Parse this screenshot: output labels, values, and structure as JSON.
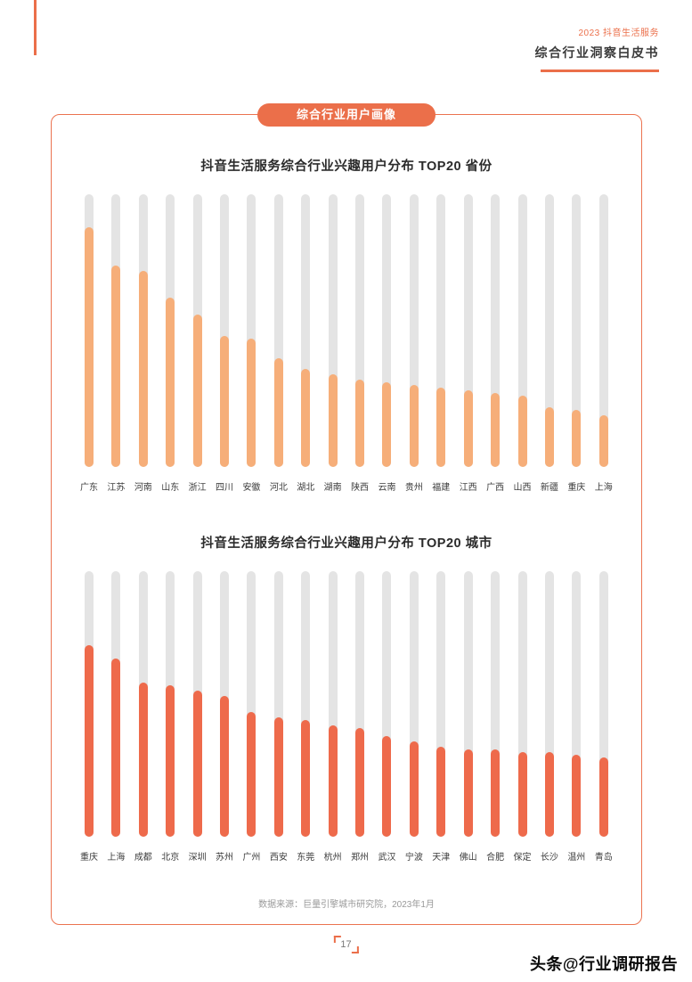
{
  "header": {
    "kicker": "2023 抖音生活服务",
    "title": "综合行业洞察白皮书"
  },
  "badge": "综合行业用户画像",
  "source": "数据来源：巨量引擎城市研究院，2023年1月",
  "page_number": "17",
  "watermark": "头条@行业调研报告",
  "colors": {
    "accent_orange": "#EB6F4A",
    "province_bar": "#F6AE79",
    "city_bar": "#EE6A4B",
    "bar_track": "#E4E4E4"
  },
  "chart_data": [
    {
      "type": "bar",
      "title": "抖音生活服务综合行业兴趣用户分布 TOP20 省份",
      "categories": [
        "广东",
        "江苏",
        "河南",
        "山东",
        "浙江",
        "四川",
        "安徽",
        "河北",
        "湖北",
        "湖南",
        "陕西",
        "云南",
        "贵州",
        "福建",
        "江西",
        "广西",
        "山西",
        "新疆",
        "重庆",
        "上海"
      ],
      "values": [
        88,
        74,
        72,
        62,
        56,
        48,
        47,
        40,
        36,
        34,
        32,
        31,
        30,
        29,
        28,
        27,
        26,
        22,
        21,
        19
      ],
      "ylim": [
        0,
        100
      ],
      "xlabel": "",
      "ylabel": "",
      "grid": false,
      "legend": "none",
      "bar_color": "#F6AE79",
      "track_color": "#E4E4E4",
      "note": "values estimated as % of full track height; no axis labels shown in figure"
    },
    {
      "type": "bar",
      "title": "抖音生活服务综合行业兴趣用户分布 TOP20 城市",
      "categories": [
        "重庆",
        "上海",
        "成都",
        "北京",
        "深圳",
        "苏州",
        "广州",
        "西安",
        "东莞",
        "杭州",
        "郑州",
        "武汉",
        "宁波",
        "天津",
        "佛山",
        "合肥",
        "保定",
        "长沙",
        "温州",
        "青岛"
      ],
      "values": [
        72,
        67,
        58,
        57,
        55,
        53,
        47,
        45,
        44,
        42,
        41,
        38,
        36,
        34,
        33,
        33,
        32,
        32,
        31,
        30
      ],
      "ylim": [
        0,
        100
      ],
      "xlabel": "",
      "ylabel": "",
      "grid": false,
      "legend": "none",
      "bar_color": "#EE6A4B",
      "track_color": "#E4E4E4",
      "note": "values estimated as % of full track height; no axis labels shown in figure"
    }
  ]
}
